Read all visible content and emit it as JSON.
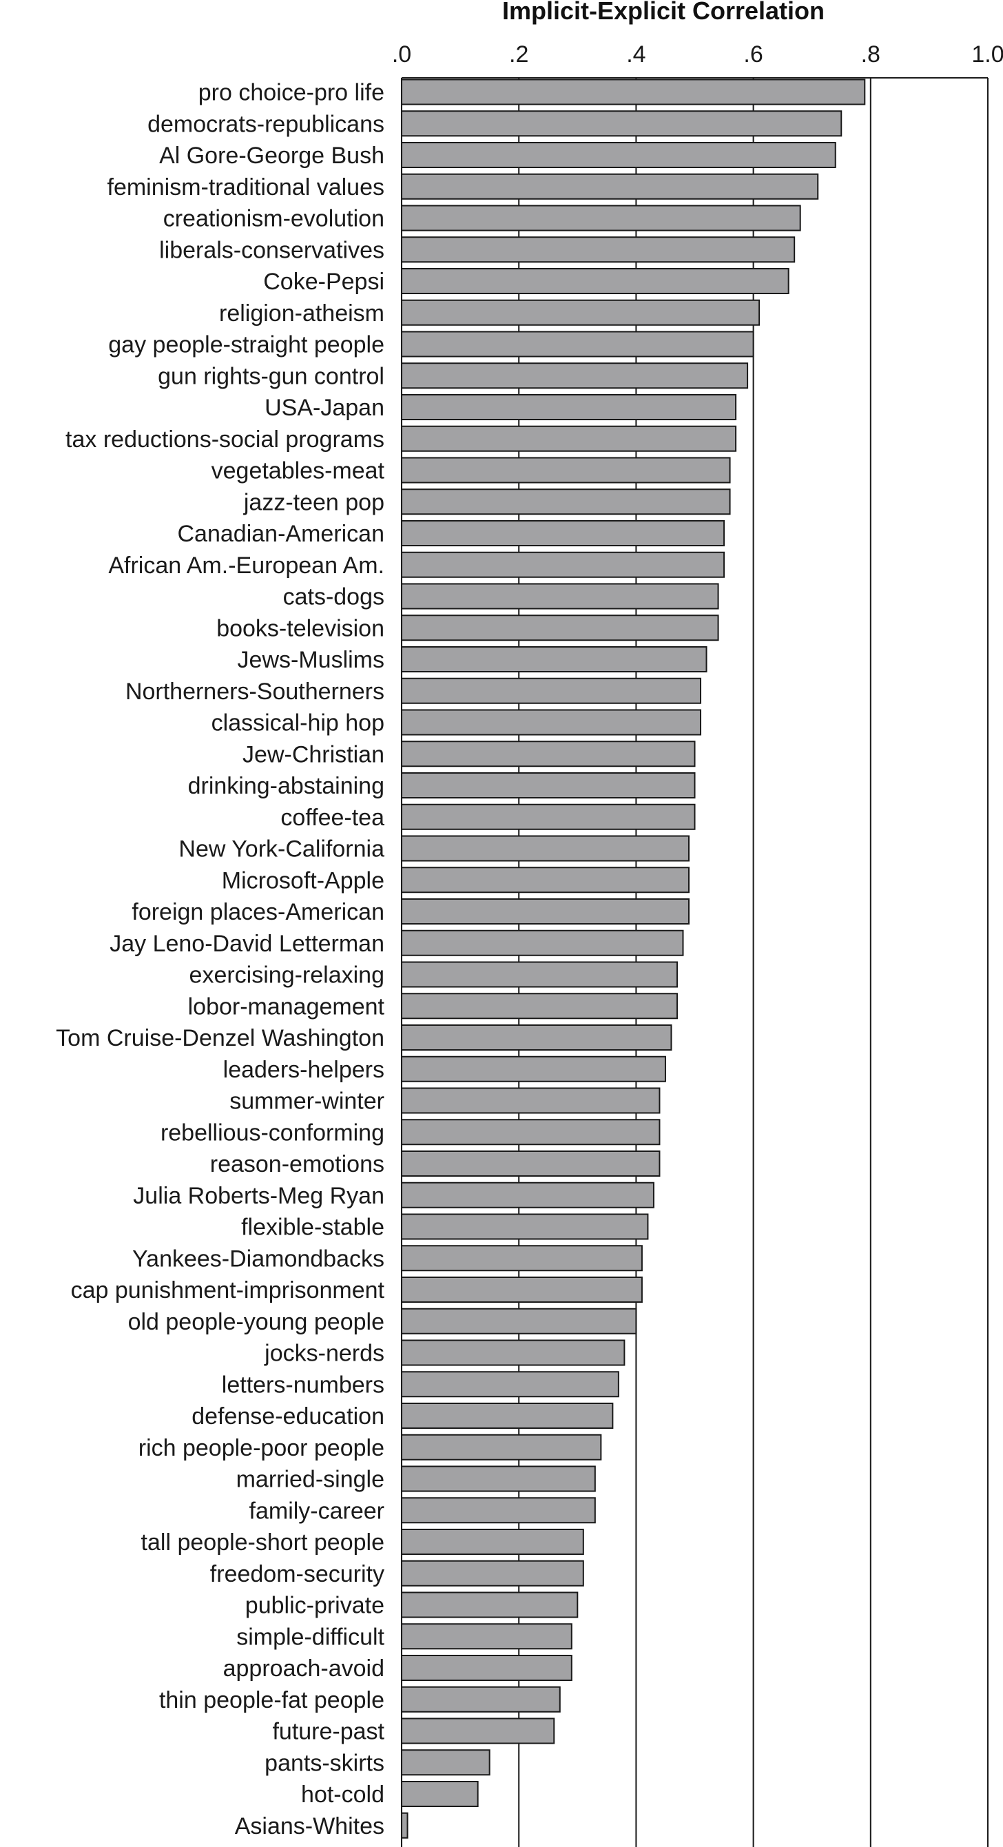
{
  "chart_data": {
    "type": "bar",
    "orientation": "horizontal",
    "title": "Implicit-Explicit Correlation",
    "xlim": [
      0,
      1.0
    ],
    "xticks": [
      ".0",
      ".2",
      ".4",
      ".6",
      ".8",
      "1.0"
    ],
    "grid": "vertical lines at each tick",
    "colors": {
      "bar_fill": "#a2a2a4",
      "bar_stroke": "#1a1a1a",
      "grid": "#1a1a1a",
      "text": "#1a1a1a"
    },
    "categories": [
      "pro choice-pro life",
      "democrats-republicans",
      "Al Gore-George Bush",
      "feminism-traditional values",
      "creationism-evolution",
      "liberals-conservatives",
      "Coke-Pepsi",
      "religion-atheism",
      "gay people-straight people",
      "gun rights-gun control",
      "USA-Japan",
      "tax reductions-social programs",
      "vegetables-meat",
      "jazz-teen pop",
      "Canadian-American",
      "African Am.-European Am.",
      "cats-dogs",
      "books-television",
      "Jews-Muslims",
      "Northerners-Southerners",
      "classical-hip hop",
      "Jew-Christian",
      "drinking-abstaining",
      "coffee-tea",
      "New York-California",
      "Microsoft-Apple",
      "foreign places-American",
      "Jay Leno-David Letterman",
      "exercising-relaxing",
      "lobor-management",
      "Tom Cruise-Denzel Washington",
      "leaders-helpers",
      "summer-winter",
      "rebellious-conforming",
      "reason-emotions",
      "Julia Roberts-Meg Ryan",
      "flexible-stable",
      "Yankees-Diamondbacks",
      "cap punishment-imprisonment",
      "old people-young people",
      "jocks-nerds",
      "letters-numbers",
      "defense-education",
      "rich people-poor people",
      "married-single",
      "family-career",
      "tall people-short people",
      "freedom-security",
      "public-private",
      "simple-difficult",
      "approach-avoid",
      "thin people-fat people",
      "future-past",
      "pants-skirts",
      "hot-cold",
      "Asians-Whites"
    ],
    "values": [
      0.79,
      0.75,
      0.74,
      0.71,
      0.68,
      0.67,
      0.66,
      0.61,
      0.6,
      0.59,
      0.57,
      0.57,
      0.56,
      0.56,
      0.55,
      0.55,
      0.54,
      0.54,
      0.52,
      0.51,
      0.51,
      0.5,
      0.5,
      0.5,
      0.49,
      0.49,
      0.49,
      0.48,
      0.47,
      0.47,
      0.46,
      0.45,
      0.44,
      0.44,
      0.44,
      0.43,
      0.42,
      0.41,
      0.41,
      0.4,
      0.38,
      0.37,
      0.36,
      0.34,
      0.33,
      0.33,
      0.31,
      0.31,
      0.3,
      0.29,
      0.29,
      0.27,
      0.26,
      0.15,
      0.13,
      0.01
    ]
  }
}
